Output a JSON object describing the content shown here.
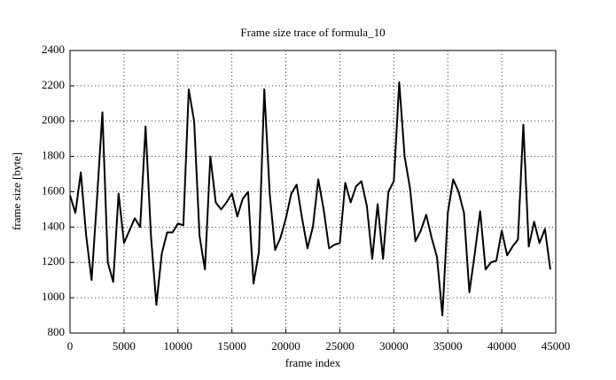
{
  "chart_data": {
    "type": "line",
    "title": "Frame size trace of formula_10",
    "x_label": "frame index",
    "y_label": "frame size [byte]",
    "x": [
      0,
      500,
      1000,
      1500,
      2000,
      2500,
      3000,
      3500,
      4000,
      4500,
      5000,
      5500,
      6000,
      6500,
      7000,
      7500,
      8000,
      8500,
      9000,
      9500,
      10000,
      10500,
      11000,
      11500,
      12000,
      12500,
      13000,
      13500,
      14000,
      14500,
      15000,
      15500,
      16000,
      16500,
      17000,
      17500,
      18000,
      18500,
      19000,
      19500,
      20000,
      20500,
      21000,
      21500,
      22000,
      22500,
      23000,
      23500,
      24000,
      24500,
      25000,
      25500,
      26000,
      26500,
      27000,
      27500,
      28000,
      28500,
      29000,
      29500,
      30000,
      30500,
      31000,
      31500,
      32000,
      32500,
      33000,
      33500,
      34000,
      34500,
      35000,
      35500,
      36000,
      36500,
      37000,
      37500,
      38000,
      38500,
      39000,
      39500,
      40000,
      40500,
      41000,
      41500,
      42000,
      42500,
      43000,
      43500,
      44000,
      44500
    ],
    "series": [
      {
        "name": "formula_10",
        "color": "#000000",
        "values": [
          1580,
          1480,
          1710,
          1350,
          1100,
          1560,
          2050,
          1200,
          1090,
          1590,
          1310,
          1380,
          1450,
          1400,
          1970,
          1350,
          960,
          1250,
          1370,
          1370,
          1420,
          1410,
          2180,
          2000,
          1350,
          1160,
          1800,
          1540,
          1500,
          1540,
          1590,
          1460,
          1560,
          1600,
          1080,
          1260,
          2180,
          1590,
          1270,
          1340,
          1450,
          1590,
          1640,
          1450,
          1280,
          1400,
          1670,
          1500,
          1280,
          1300,
          1310,
          1650,
          1540,
          1630,
          1660,
          1520,
          1220,
          1530,
          1220,
          1600,
          1660,
          2220,
          1800,
          1620,
          1320,
          1380,
          1470,
          1340,
          1230,
          900,
          1480,
          1670,
          1600,
          1480,
          1030,
          1250,
          1490,
          1160,
          1200,
          1210,
          1380,
          1240,
          1290,
          1330,
          1980,
          1290,
          1430,
          1310,
          1390,
          1160
        ]
      }
    ],
    "xlim": [
      0,
      45000
    ],
    "ylim": [
      800,
      2400
    ],
    "xticks": [
      0,
      5000,
      10000,
      15000,
      20000,
      25000,
      30000,
      35000,
      40000,
      45000
    ],
    "yticks": [
      800,
      1000,
      1200,
      1400,
      1600,
      1800,
      2000,
      2200,
      2400
    ],
    "grid": true
  }
}
